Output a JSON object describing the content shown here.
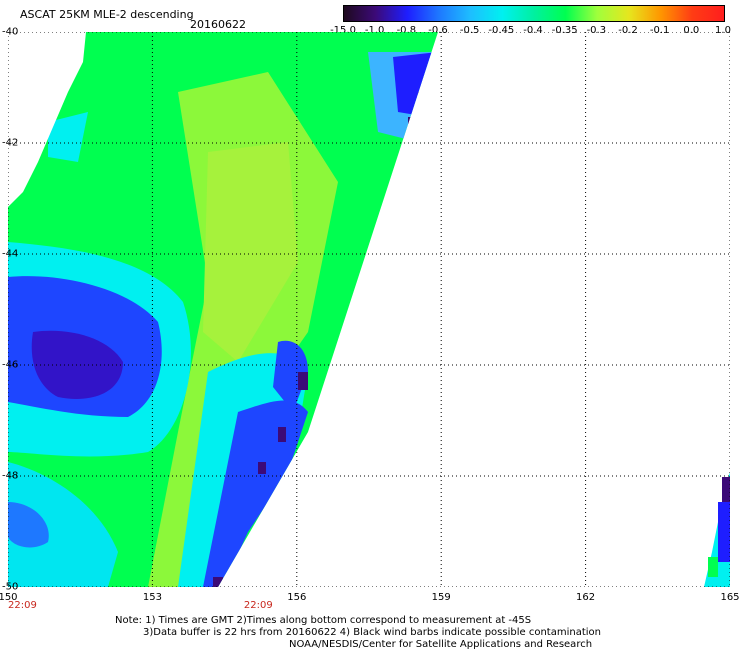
{
  "title": "ASCAT 25KM MLE-2 descending",
  "date": "20160622",
  "colorbar": {
    "ticks": [
      "-15.0",
      "-1.0",
      "-0.8",
      "-0.6",
      "-0.5",
      "-0.45",
      "-0.4",
      "-0.35",
      "-0.3",
      "-0.2",
      "-0.1",
      "0.0",
      "1.0"
    ],
    "colors": [
      "#1e0a1e",
      "#3c0a78",
      "#1e1eff",
      "#1e78ff",
      "#1ebeff",
      "#00f0f0",
      "#00f0a0",
      "#00ff50",
      "#a0ff3c",
      "#e6e61e",
      "#ff9600",
      "#ff3c14",
      "#ff1e1e"
    ]
  },
  "axes": {
    "lat_labels": [
      "-40",
      "-42",
      "-44",
      "-46",
      "-48",
      "-50"
    ],
    "lon_labels": [
      "150",
      "153",
      "156",
      "159",
      "162",
      "165"
    ]
  },
  "time_labels": [
    "22:09",
    "22:09"
  ],
  "notes": [
    "Note: 1) Times are GMT 2)Times along bottom correspond to measurement at -45S",
    "3)Data buffer is 22 hrs from 20160622 4) Black wind barbs indicate possible contamination",
    "NOAA/NESDIS/Center for Satellite Applications and Research"
  ]
}
